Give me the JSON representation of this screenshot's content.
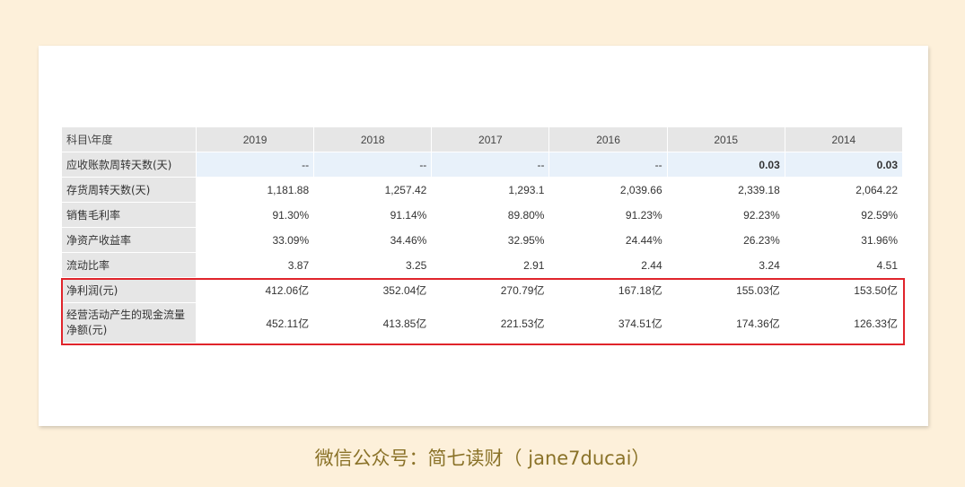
{
  "table": {
    "header": [
      "科目\\年度",
      "2019",
      "2018",
      "2017",
      "2016",
      "2015",
      "2014"
    ],
    "rows": [
      {
        "label": "应收账款周转天数(天)",
        "values": [
          "--",
          "--",
          "--",
          "--",
          "0.03",
          "0.03"
        ]
      },
      {
        "label": "存货周转天数(天)",
        "values": [
          "1,181.88",
          "1,257.42",
          "1,293.1",
          "2,039.66",
          "2,339.18",
          "2,064.22"
        ]
      },
      {
        "label": "销售毛利率",
        "values": [
          "91.30%",
          "91.14%",
          "89.80%",
          "91.23%",
          "92.23%",
          "92.59%"
        ]
      },
      {
        "label": "净资产收益率",
        "values": [
          "33.09%",
          "34.46%",
          "32.95%",
          "24.44%",
          "26.23%",
          "31.96%"
        ]
      },
      {
        "label": "流动比率",
        "values": [
          "3.87",
          "3.25",
          "2.91",
          "2.44",
          "3.24",
          "4.51"
        ]
      },
      {
        "label": "净利润(元)",
        "values": [
          "412.06亿",
          "352.04亿",
          "270.79亿",
          "167.18亿",
          "155.03亿",
          "153.50亿"
        ]
      },
      {
        "label": "经营活动产生的现金流量净额(元)",
        "values": [
          "452.11亿",
          "413.85亿",
          "221.53亿",
          "374.51亿",
          "174.36亿",
          "126.33亿"
        ]
      }
    ]
  },
  "colors": {
    "page_bg": "#fdf0da",
    "header_bg": "#e6e6e6",
    "highlight_row_bg": "#e8f1fa",
    "red_box": "#e0242b",
    "caption": "#8a7228"
  },
  "caption": "微信公众号：简七读财（ jane7ducai）"
}
